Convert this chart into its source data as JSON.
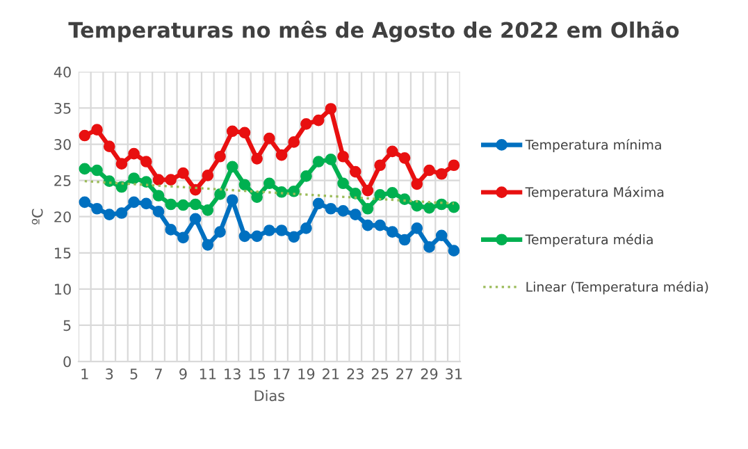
{
  "chart_data": {
    "type": "line",
    "title": "Temperaturas no mês de Agosto de 2022 em Olhão",
    "xlabel": "Dias",
    "ylabel": "ºC",
    "categories": [
      "1",
      null,
      "3",
      null,
      "5",
      null,
      "7",
      null,
      "9",
      null,
      "11",
      null,
      "13",
      null,
      "15",
      null,
      "17",
      null,
      "19",
      null,
      "21",
      null,
      "23",
      null,
      "25",
      null,
      "27",
      null,
      "29",
      null,
      "31"
    ],
    "series": [
      {
        "name": "Temperatura mínima",
        "color": "#0070c0",
        "marker": "circle",
        "values": [
          22,
          21.1,
          20.3,
          20.5,
          22,
          21.8,
          20.7,
          18.2,
          17.1,
          19.7,
          16.1,
          17.9,
          22.3,
          17.3,
          17.3,
          18.1,
          18.1,
          17.2,
          18.4,
          21.8,
          21.1,
          20.8,
          20.3,
          18.8,
          18.8,
          17.9,
          16.8,
          18.4,
          15.8,
          17.4,
          15.3
        ]
      },
      {
        "name": "Temperatura Máxima",
        "color": "#e81010",
        "marker": "circle",
        "values": [
          31.2,
          32,
          29.7,
          27.3,
          28.7,
          27.6,
          25.1,
          25.1,
          26,
          23.7,
          25.7,
          28.3,
          31.8,
          31.6,
          28,
          30.8,
          28.5,
          30.3,
          32.8,
          33.3,
          34.9,
          28.3,
          26.2,
          23.6,
          27.1,
          29,
          28.1,
          24.5,
          26.4,
          25.9,
          27.1
        ]
      },
      {
        "name": "Temperatura média",
        "color": "#00b050",
        "marker": "circle",
        "values": [
          26.6,
          26.4,
          24.9,
          24.1,
          25.3,
          24.8,
          22.9,
          21.7,
          21.6,
          21.7,
          20.9,
          23.1,
          26.9,
          24.4,
          22.7,
          24.6,
          23.4,
          23.5,
          25.6,
          27.6,
          27.9,
          24.6,
          23.2,
          21.1,
          23,
          23.3,
          22.4,
          21.5,
          21.2,
          21.7,
          21.3
        ]
      },
      {
        "name": "Linear (Temperatura média)",
        "color": "#9bbb59",
        "marker": "none",
        "line_style": "dotted",
        "x": [
          "1",
          "31"
        ],
        "values": [
          24.9,
          21.8
        ]
      }
    ],
    "ylim": [
      0,
      40
    ],
    "yticks": [
      0,
      5,
      10,
      15,
      20,
      25,
      30,
      35,
      40
    ],
    "grid": true,
    "legend": "right"
  }
}
